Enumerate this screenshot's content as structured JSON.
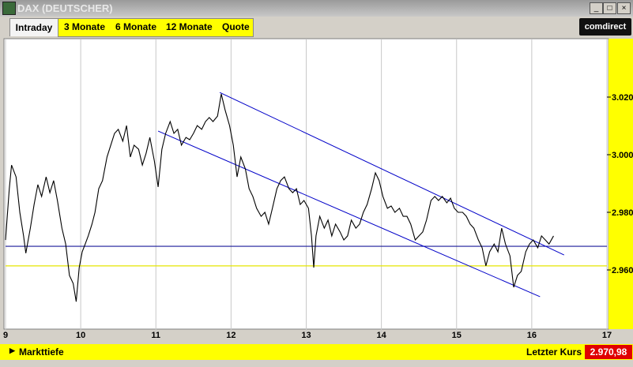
{
  "window": {
    "title": "DAX (DEUTSCHER)"
  },
  "tabs": [
    "Intraday",
    "3 Monate",
    "6 Monate",
    "12 Monate",
    "Quote"
  ],
  "brand": "comdirect",
  "footer": {
    "depth": "Markttiefe",
    "last_label": "Letzter Kurs",
    "last_price": "2.970,98"
  },
  "chart_data": {
    "type": "line",
    "xlim": [
      9,
      17
    ],
    "xticks": [
      9,
      10,
      11,
      12,
      13,
      14,
      15,
      16,
      17
    ],
    "ylim": [
      2940,
      3040
    ],
    "yticks": [
      {
        "value": 2960,
        "label": "2.960"
      },
      {
        "value": 2980,
        "label": "2.980"
      },
      {
        "value": 3000,
        "label": "3.000"
      },
      {
        "value": 3020,
        "label": "3.020"
      }
    ],
    "grid": "x",
    "series": [
      {
        "color": "#000000",
        "x": [
          9.0,
          9.05,
          9.08,
          9.14,
          9.19,
          9.24,
          9.27,
          9.33,
          9.38,
          9.43,
          9.48,
          9.54,
          9.59,
          9.64,
          9.69,
          9.75,
          9.8,
          9.85,
          9.9,
          9.94,
          9.98,
          10.02,
          10.06,
          10.1,
          10.15,
          10.19,
          10.24,
          10.29,
          10.35,
          10.4,
          10.45,
          10.5,
          10.56,
          10.61,
          10.66,
          10.71,
          10.77,
          10.82,
          10.87,
          10.92,
          10.98,
          11.03,
          11.08,
          11.13,
          11.19,
          11.24,
          11.29,
          11.34,
          11.4,
          11.45,
          11.5,
          11.55,
          11.61,
          11.66,
          11.71,
          11.76,
          11.82,
          11.87,
          11.92,
          11.98,
          12.03,
          12.08,
          12.13,
          12.19,
          12.24,
          12.29,
          12.34,
          12.4,
          12.45,
          12.5,
          12.55,
          12.61,
          12.66,
          12.71,
          12.77,
          12.82,
          12.87,
          12.92,
          12.97,
          13.03,
          13.07,
          13.1,
          13.13,
          13.18,
          13.24,
          13.29,
          13.34,
          13.39,
          13.45,
          13.5,
          13.55,
          13.6,
          13.66,
          13.71,
          13.76,
          13.81,
          13.87,
          13.92,
          13.97,
          14.02,
          14.08,
          14.13,
          14.18,
          14.24,
          14.29,
          14.34,
          14.39,
          14.45,
          14.5,
          14.55,
          14.6,
          14.66,
          14.71,
          14.76,
          14.81,
          14.87,
          14.92,
          14.97,
          15.02,
          15.08,
          15.13,
          15.18,
          15.23,
          15.29,
          15.34,
          15.39,
          15.44,
          15.5,
          15.55,
          15.6,
          15.65,
          15.71,
          15.76,
          15.81,
          15.86,
          15.92,
          15.97,
          16.02,
          16.08,
          16.13,
          16.18,
          16.23,
          16.29
        ],
        "values": [
          2970.4,
          2988.2,
          2996.4,
          2992.3,
          2980.0,
          2971.8,
          2965.8,
          2974.5,
          2982.7,
          2989.6,
          2985.5,
          2992.3,
          2986.8,
          2991.0,
          2984.1,
          2974.5,
          2969.0,
          2958.1,
          2955.3,
          2949.0,
          2960.8,
          2966.3,
          2969.0,
          2971.8,
          2975.9,
          2980.0,
          2988.2,
          2991.0,
          2999.2,
          3003.3,
          3007.4,
          3008.8,
          3004.7,
          3010.1,
          2999.2,
          3003.3,
          3001.9,
          2996.4,
          3000.5,
          3006.0,
          2997.8,
          2988.8,
          3001.9,
          3007.4,
          3011.5,
          3007.4,
          3008.8,
          3003.3,
          3006.0,
          3005.2,
          3007.4,
          3010.1,
          3008.8,
          3011.5,
          3012.9,
          3011.5,
          3013.4,
          3021.1,
          3015.6,
          3010.1,
          3003.3,
          2992.3,
          2999.2,
          2995.1,
          2988.2,
          2985.5,
          2981.4,
          2978.6,
          2980.0,
          2975.9,
          2981.4,
          2988.2,
          2991.0,
          2992.3,
          2988.2,
          2986.8,
          2988.2,
          2982.7,
          2984.1,
          2981.4,
          2971.8,
          2960.8,
          2971.8,
          2978.6,
          2974.5,
          2977.3,
          2971.8,
          2975.9,
          2973.2,
          2970.4,
          2971.8,
          2977.3,
          2974.5,
          2975.9,
          2980.0,
          2982.7,
          2988.2,
          2993.7,
          2991.0,
          2985.5,
          2981.4,
          2982.2,
          2980.0,
          2981.4,
          2978.6,
          2978.6,
          2975.9,
          2970.4,
          2971.8,
          2973.2,
          2977.3,
          2984.1,
          2985.5,
          2984.1,
          2985.5,
          2983.3,
          2984.9,
          2981.4,
          2980.0,
          2980.0,
          2978.6,
          2975.9,
          2974.5,
          2970.4,
          2967.7,
          2961.4,
          2966.3,
          2969.0,
          2966.3,
          2974.5,
          2969.0,
          2964.9,
          2954.0,
          2958.1,
          2959.5,
          2966.3,
          2969.0,
          2970.4,
          2967.7,
          2971.8,
          2970.4,
          2969.0,
          2971.8
        ]
      }
    ],
    "trendlines": [
      {
        "color": "#0000c8",
        "x": [
          11.85,
          16.43
        ],
        "y": [
          3021.6,
          2965.2
        ]
      },
      {
        "color": "#0000c8",
        "x": [
          11.03,
          16.11
        ],
        "y": [
          3008.2,
          2950.7
        ]
      }
    ],
    "hlines": [
      {
        "color": "#1a1a9a",
        "y": 2968.2
      },
      {
        "color": "#e6e600",
        "y": 2961.4
      }
    ]
  }
}
